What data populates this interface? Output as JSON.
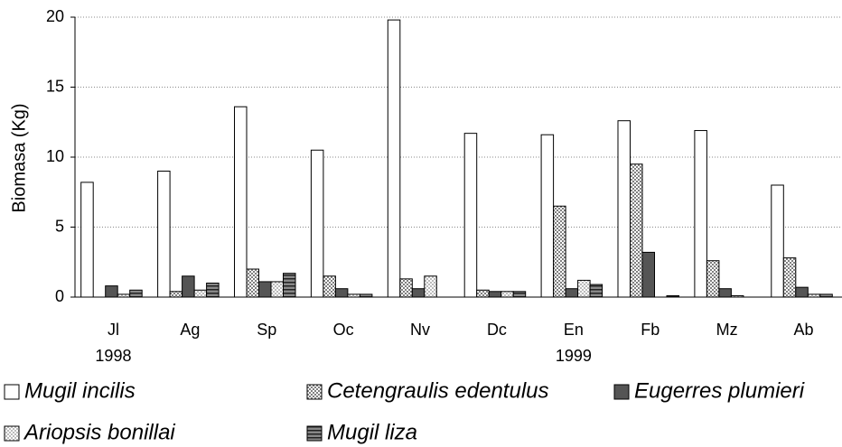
{
  "chart_data": {
    "type": "bar",
    "y_label": "Biomasa (Kg)",
    "categories": [
      "Jl",
      "Ag",
      "Sp",
      "Oc",
      "Nv",
      "Dc",
      "En",
      "Fb",
      "Mz",
      "Ab"
    ],
    "year_labels": [
      "1998",
      null,
      null,
      null,
      null,
      null,
      "1999",
      null,
      null,
      null
    ],
    "series": [
      {
        "name": "Mugil incilis",
        "color": "#ffffff",
        "pattern": "solid",
        "values": [
          8.2,
          9.0,
          13.6,
          10.5,
          19.8,
          11.7,
          11.6,
          12.6,
          11.9,
          8.0
        ]
      },
      {
        "name": "Cetengraulis edentulus",
        "color": "#808080",
        "pattern": "dots",
        "values": [
          0,
          0.4,
          2.0,
          1.5,
          1.3,
          0.5,
          6.5,
          9.5,
          2.6,
          2.8
        ]
      },
      {
        "name": "Eugerres plumieri",
        "color": "#555555",
        "pattern": "solid",
        "values": [
          0.8,
          1.5,
          1.1,
          0.6,
          0.6,
          0.4,
          0.6,
          3.2,
          0.6,
          0.7
        ]
      },
      {
        "name": "Ariopsis bonillai",
        "color": "#bbbbbb",
        "pattern": "dots",
        "values": [
          0.2,
          0.5,
          1.1,
          0.2,
          1.5,
          0.4,
          1.2,
          0,
          0.1,
          0.2
        ]
      },
      {
        "name": "Mugil liza",
        "color": "#888888",
        "pattern": "stripes",
        "values": [
          0.5,
          1.0,
          1.7,
          0.2,
          0,
          0.4,
          0.9,
          0.1,
          0,
          0.2
        ]
      }
    ],
    "ylim": [
      0,
      20
    ],
    "yticks": [
      0,
      5,
      10,
      15,
      20
    ],
    "grid": true,
    "legend": "bottom"
  }
}
